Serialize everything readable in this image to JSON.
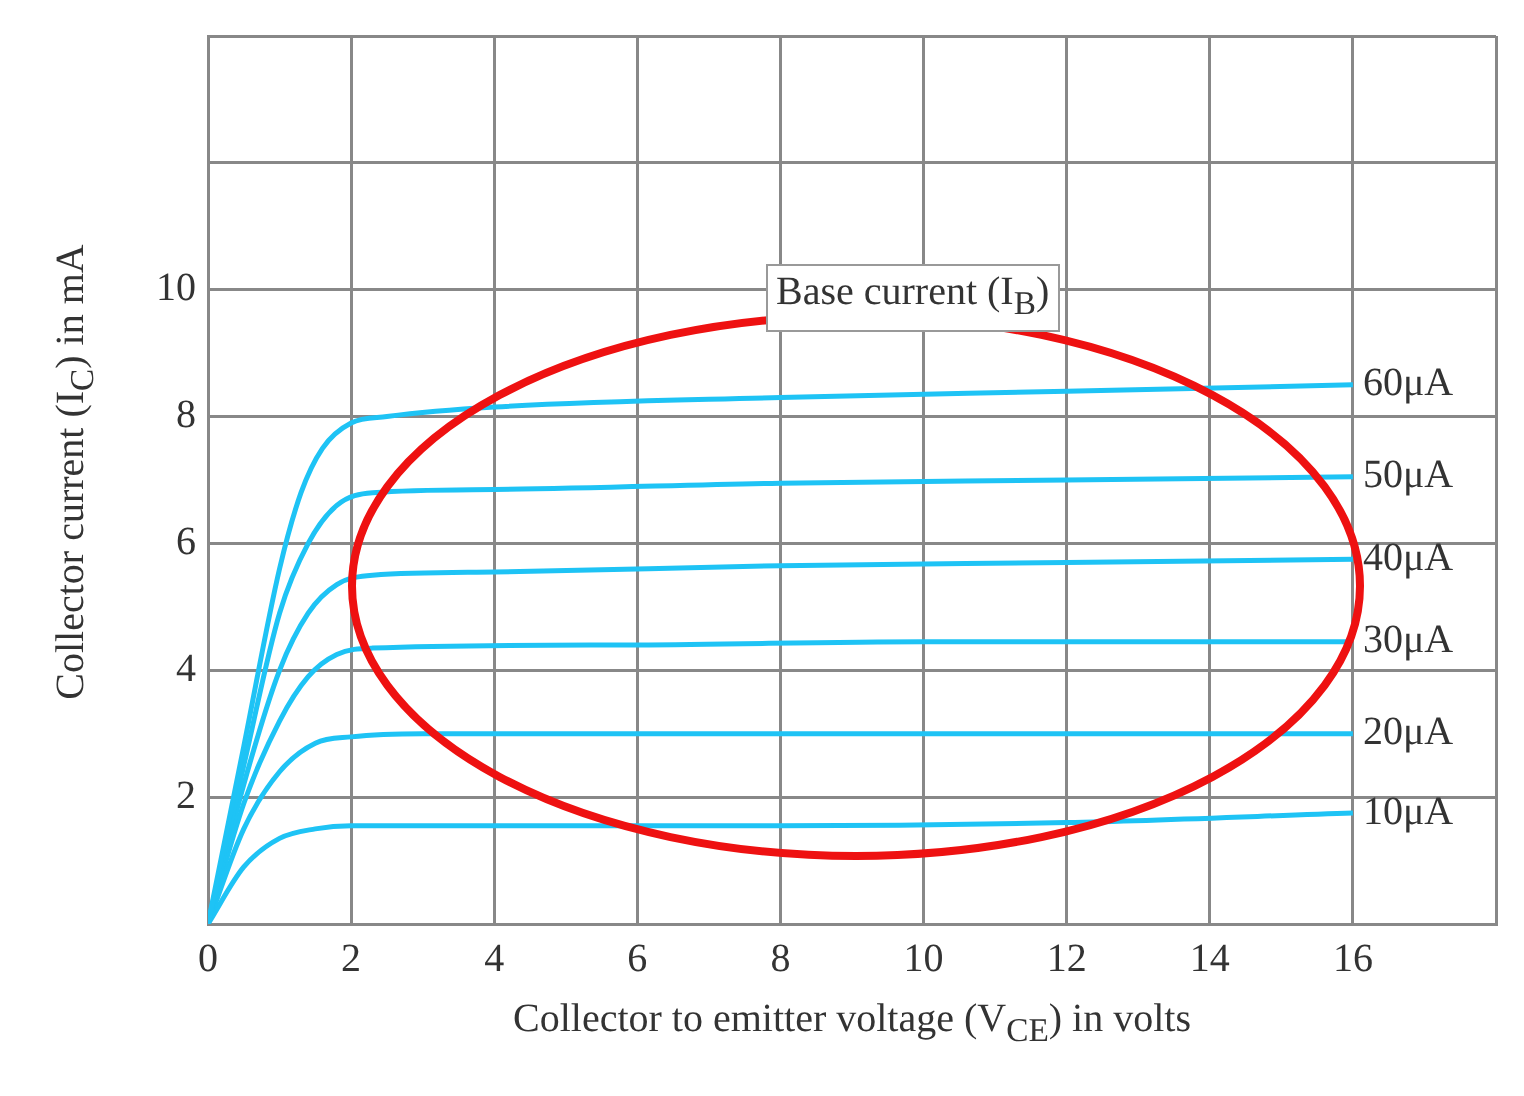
{
  "chart_data": {
    "type": "line",
    "xlabel": "Collector to emitter voltage (V$_{CE}$) in volts",
    "ylabel": "Collector current (I$_{C}$) in mA",
    "annotations": [
      "Base current (I$_{B}$)"
    ],
    "xlim": [
      0,
      18
    ],
    "ylim": [
      0,
      14
    ],
    "xticks": [
      0,
      2,
      4,
      6,
      8,
      10,
      12,
      14,
      16,
      {
        "value": 18,
        "label": null
      }
    ],
    "yticks": [
      2,
      4,
      6,
      8,
      10,
      {
        "value": 12,
        "label": null
      },
      {
        "value": 14,
        "label": null
      }
    ],
    "grid": true,
    "marker": "none",
    "line_style": "solid",
    "series": [
      {
        "name": "60μA",
        "color": "#1ec3f5",
        "x": [
          0,
          0.5,
          1,
          1.3,
          1.6,
          2,
          2.5,
          4,
          8,
          12,
          16
        ],
        "values": [
          0,
          2.8,
          5.6,
          6.8,
          7.5,
          7.9,
          8.0,
          8.15,
          8.3,
          8.4,
          8.5
        ]
      },
      {
        "name": "50μA",
        "color": "#1ec3f5",
        "x": [
          0,
          0.5,
          1,
          1.4,
          1.8,
          2.3,
          4,
          8,
          12,
          16
        ],
        "values": [
          0,
          2.5,
          4.9,
          6.0,
          6.6,
          6.8,
          6.85,
          6.95,
          7.0,
          7.05
        ]
      },
      {
        "name": "40μA",
        "color": "#1ec3f5",
        "x": [
          0,
          0.5,
          1,
          1.4,
          1.8,
          2.3,
          4,
          8,
          12,
          16
        ],
        "values": [
          0,
          2.2,
          4.0,
          4.9,
          5.35,
          5.5,
          5.55,
          5.65,
          5.7,
          5.75
        ]
      },
      {
        "name": "30μA",
        "color": "#1ec3f5",
        "x": [
          0,
          0.5,
          1,
          1.4,
          1.8,
          2.3,
          6,
          10,
          16
        ],
        "values": [
          0,
          1.9,
          3.2,
          3.9,
          4.25,
          4.35,
          4.4,
          4.45,
          4.45
        ]
      },
      {
        "name": "20μA",
        "color": "#1ec3f5",
        "x": [
          0,
          0.5,
          1,
          1.5,
          2,
          3,
          10,
          16
        ],
        "values": [
          0,
          1.5,
          2.4,
          2.85,
          2.95,
          3.0,
          3.0,
          3.0
        ]
      },
      {
        "name": "10μA",
        "color": "#1ec3f5",
        "x": [
          0,
          0.5,
          1,
          1.5,
          2,
          8,
          12,
          16
        ],
        "values": [
          0,
          0.9,
          1.35,
          1.5,
          1.55,
          1.55,
          1.6,
          1.75
        ]
      }
    ]
  }
}
